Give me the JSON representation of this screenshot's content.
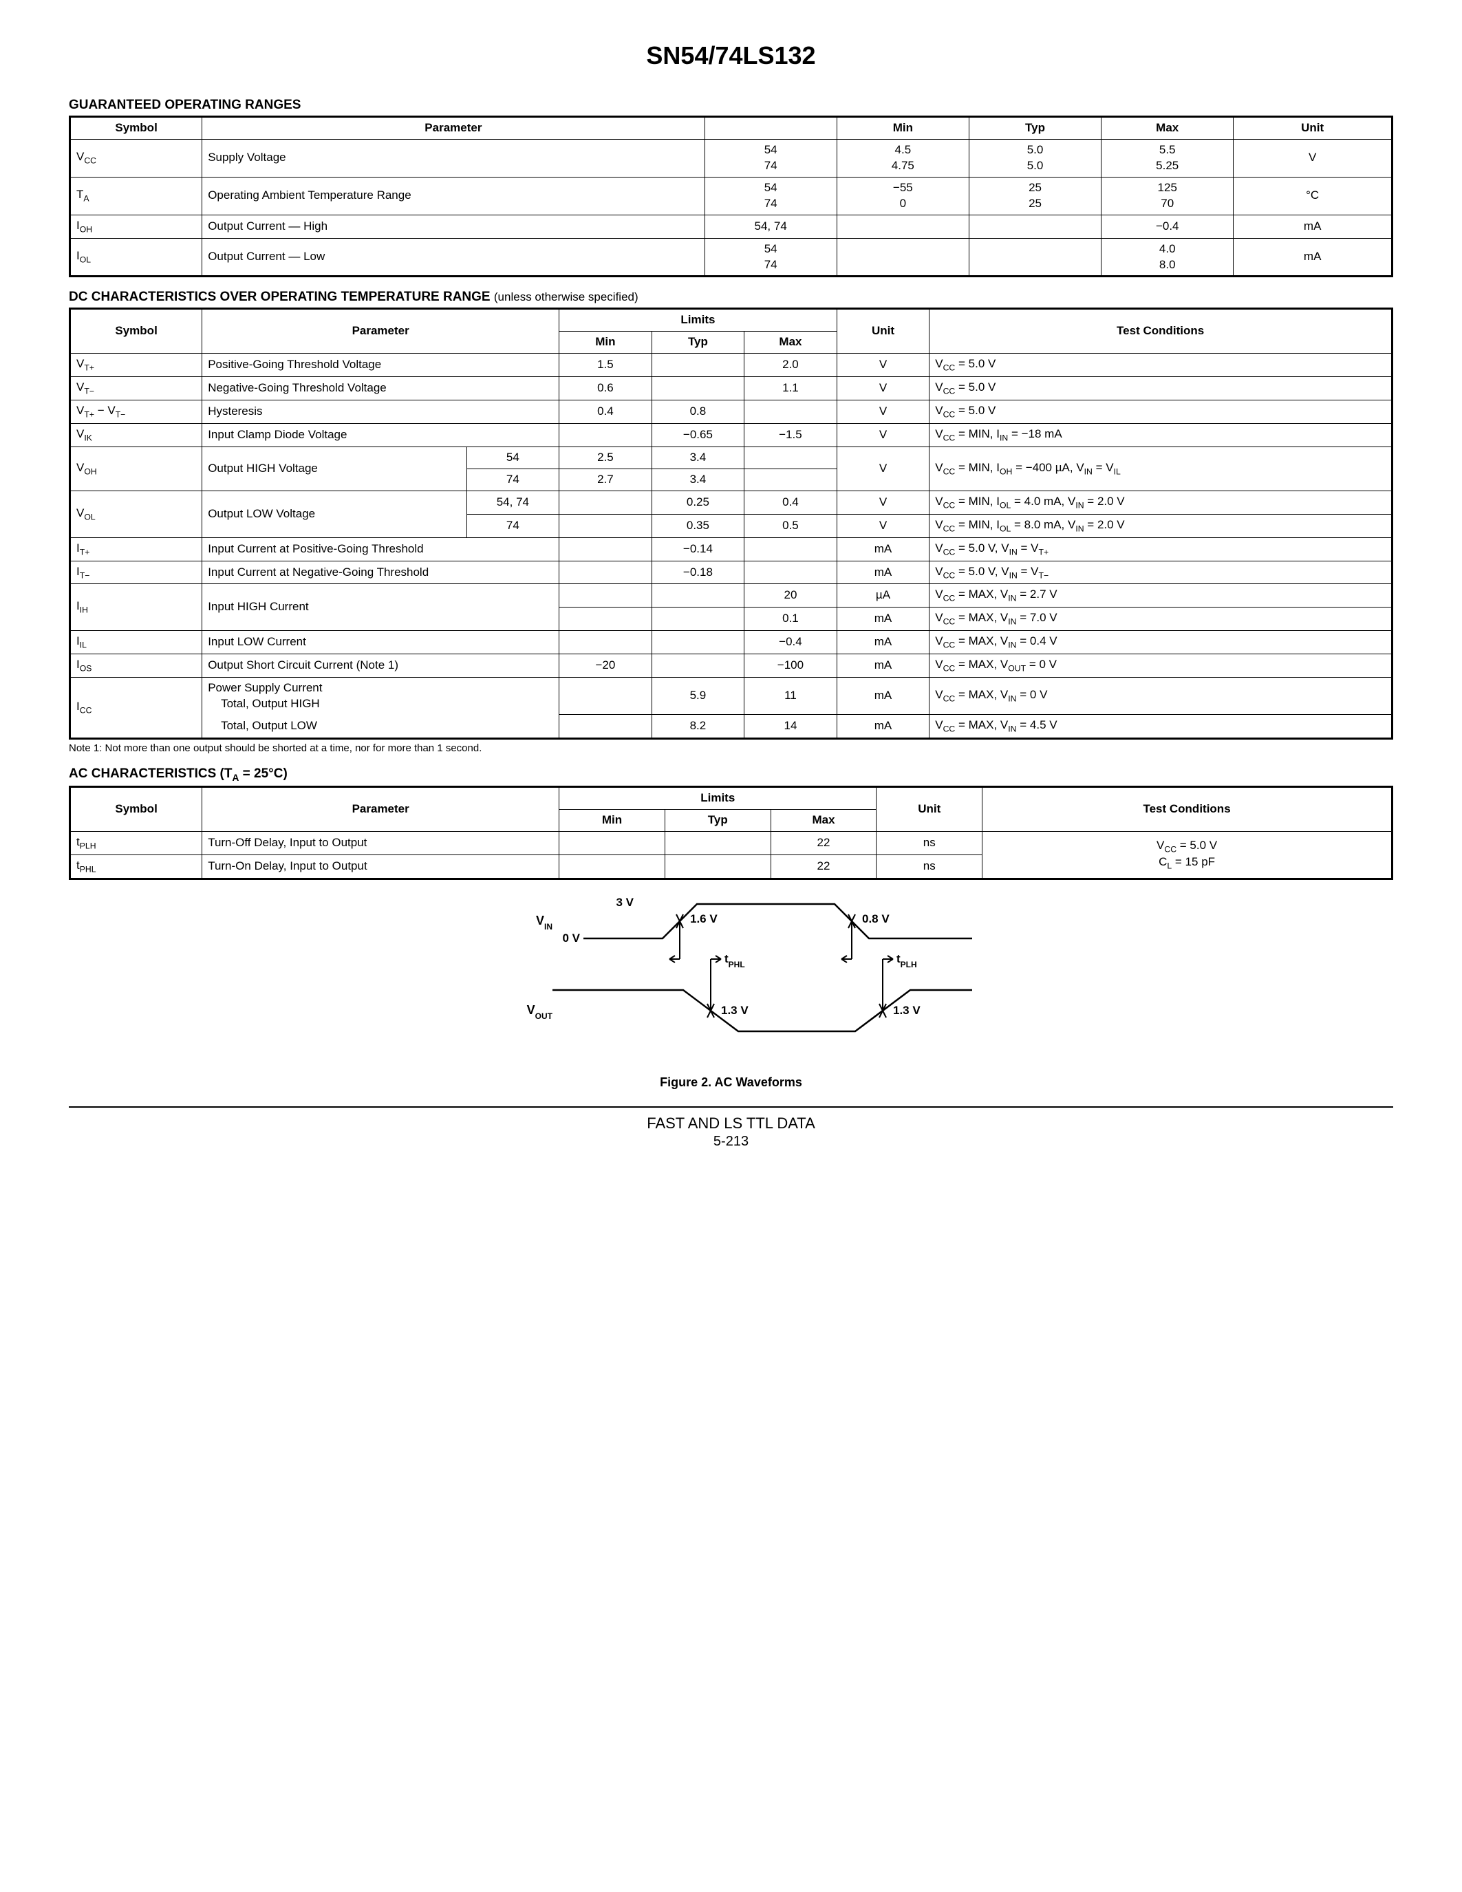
{
  "title": "SN54/74LS132",
  "sections": {
    "gor": {
      "heading": "GUARANTEED OPERATING RANGES",
      "headers": [
        "Symbol",
        "Parameter",
        "",
        "Min",
        "Typ",
        "Max",
        "Unit"
      ],
      "rows": [
        {
          "symbol_html": "V<span class='sub'>CC</span>",
          "param": "Supply Voltage",
          "cond": "54\n74",
          "min": "4.5\n4.75",
          "typ": "5.0\n5.0",
          "max": "5.5\n5.25",
          "unit": "V"
        },
        {
          "symbol_html": "T<span class='sub'>A</span>",
          "param": "Operating Ambient Temperature Range",
          "cond": "54\n74",
          "min": "−55\n0",
          "typ": "25\n25",
          "max": "125\n70",
          "unit": "°C"
        },
        {
          "symbol_html": "I<span class='sub'>OH</span>",
          "param": "Output Current — High",
          "cond": "54, 74",
          "min": "",
          "typ": "",
          "max": "−0.4",
          "unit": "mA"
        },
        {
          "symbol_html": "I<span class='sub'>OL</span>",
          "param": "Output Current — Low",
          "cond": "54\n74",
          "min": "",
          "typ": "",
          "max": "4.0\n8.0",
          "unit": "mA"
        }
      ]
    },
    "dc": {
      "heading": "DC CHARACTERISTICS OVER OPERATING TEMPERATURE RANGE",
      "heading_note": "(unless otherwise specified)",
      "limits_label": "Limits",
      "headers": [
        "Symbol",
        "Parameter",
        "Min",
        "Typ",
        "Max",
        "Unit",
        "Test Conditions"
      ],
      "footnote": "Note 1: Not more than one output should be shorted at a time, nor for more than 1 second."
    },
    "ac": {
      "heading_html": "AC CHARACTERISTICS (T<span class='sub'>A</span> = 25°C)",
      "limits_label": "Limits",
      "headers": [
        "Symbol",
        "Parameter",
        "Min",
        "Typ",
        "Max",
        "Unit",
        "Test Conditions"
      ],
      "rows": [
        {
          "symbol_html": "t<span class='sub'>PLH</span>",
          "param": "Turn-Off Delay, Input to Output",
          "min": "",
          "typ": "",
          "max": "22",
          "unit": "ns"
        },
        {
          "symbol_html": "t<span class='sub'>PHL</span>",
          "param": "Turn-On Delay, Input to Output",
          "min": "",
          "typ": "",
          "max": "22",
          "unit": "ns"
        }
      ],
      "tc_html": "V<span class='sub'>CC</span> = 5.0 V<br>C<span class='sub'>L</span> = 15 pF"
    }
  },
  "diagram": {
    "caption": "Figure 2. AC Waveforms",
    "labels": {
      "v3": "3 V",
      "v16": "1.6 V",
      "v08": "0.8 V",
      "v0": "0 V",
      "vin_html": "V<tspan baseline-shift='sub' font-size='12'>IN</tspan>",
      "vout_html": "V<tspan baseline-shift='sub' font-size='12'>OUT</tspan>",
      "tphl_html": "t<tspan baseline-shift='sub' font-size='12'>PHL</tspan>",
      "tplh_html": "t<tspan baseline-shift='sub' font-size='12'>PLH</tspan>",
      "v13": "1.3 V"
    },
    "colors": {
      "stroke": "#000000",
      "bg": "#ffffff"
    }
  },
  "footer": {
    "text": "FAST AND LS TTL DATA",
    "page": "5-213"
  }
}
